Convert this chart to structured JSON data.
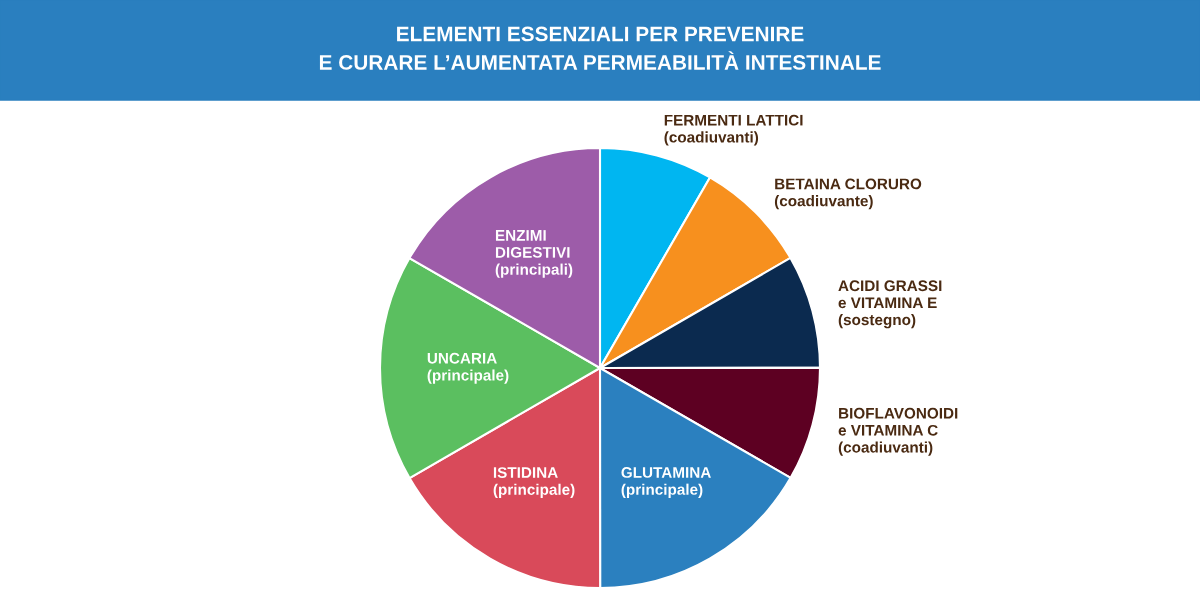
{
  "chart_data": {
    "type": "pie",
    "title": "ELEMENTI ESSENZIALI PER PREVENIRE\nE CURARE L’AUMENTATA PERMEABILITÀ INTESTINALE",
    "categories": [
      "FERMENTI LATTICI\n(coadiuvanti)",
      "BETAINA CLORURO\n(coadiuvante)",
      "ACIDI GRASSI\ne VITAMINA E\n(sostegno)",
      "BIOFLAVONOIDI\ne VITAMINA C\n(coadiuvanti)",
      "GLUTAMINA\n(principale)",
      "ISTIDINA\n(principale)",
      "UNCARIA\n(principale)",
      "ENZIMI\nDIGESTIVI\n(principali)"
    ],
    "values": [
      8.33,
      8.33,
      8.33,
      8.33,
      16.67,
      16.67,
      16.67,
      16.67
    ],
    "colors": [
      "#00b6f1",
      "#f7901e",
      "#0b2a4f",
      "#5d0022",
      "#2b80bf",
      "#d94a5a",
      "#5bbf60",
      "#9d5ca9"
    ]
  }
}
